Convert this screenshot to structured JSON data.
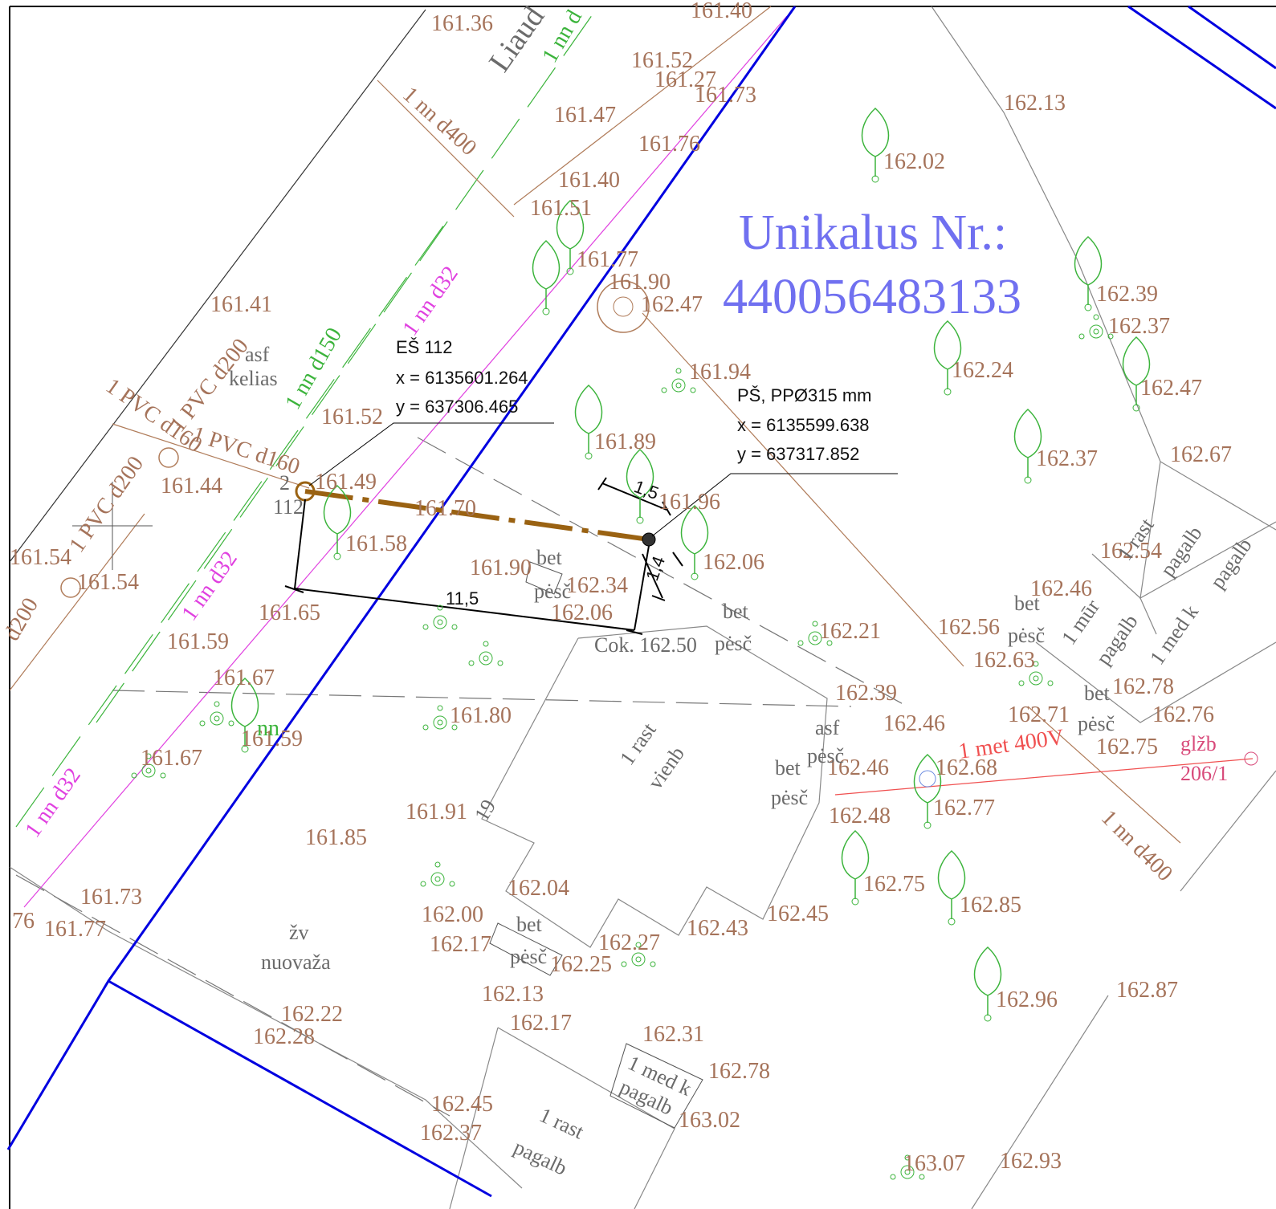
{
  "labels": [
    "161.36",
    "161.40",
    "161.52",
    "161.27",
    "161.73",
    "161.47",
    "161.76",
    "161.40",
    "161.51",
    "161.77",
    "161.90",
    "162.47",
    "161.41",
    "161.94",
    "161.52",
    "161.89",
    "161.44",
    "161.49",
    "161.96",
    "161.70",
    "161.58",
    "161.54",
    "161.54",
    "161.65",
    "161.90",
    "162.34",
    "162.06",
    "162.06",
    "161.59",
    "Cok. 162.50",
    "162.21",
    "161.67",
    "161.80",
    "161.59",
    "161.67",
    "162.39",
    "162.46",
    "162.46",
    "162.68",
    "162.48",
    "162.77",
    "161.91",
    "161.85",
    "162.04",
    "162.00",
    "162.17",
    "162.27",
    "162.25",
    "162.43",
    "162.45",
    "162.75",
    "162.85",
    "162.13",
    "162.17",
    "162.31",
    "162.78",
    "163.02",
    "162.22",
    "162.28",
    "162.45",
    "162.37",
    "161.73",
    "161.77",
    "76",
    "162.96",
    "162.87",
    "163.07",
    "162.93",
    "162.13",
    "162.02",
    "162.39",
    "162.37",
    "162.24",
    "162.47",
    "162.37",
    "162.67",
    "162.54",
    "162.46",
    "162.56",
    "162.63",
    "162.78",
    "162.71",
    "162.76",
    "162.75",
    "asf",
    "kelias",
    "bet",
    "pėsč",
    "bet",
    "pėsč",
    "asf",
    "pėsč",
    "bet",
    "pėsč",
    "bet",
    "pėsč",
    "bet",
    "pėsč",
    "bet",
    "pėsč",
    "žv",
    "nuovaža",
    "19",
    "2",
    "112",
    "1 rast",
    "vienb",
    "1 rast",
    "pagalb",
    "pagalb",
    "1 mūr",
    "pagalb",
    "1 med k",
    "1 med k",
    "pagalb",
    "1 rast",
    "pagalb",
    "Liaud",
    "1 nn d400",
    "1 PVC d200",
    "1 PVC d160",
    "1 PVC d160",
    "1 PVC d200",
    "d200",
    "1 nn d400",
    "1 nn d150",
    "1 nn d",
    "nn",
    "1 nn d32",
    "1 nn d32",
    "1 nn d32",
    "Unikalus Nr.:",
    "440056483133",
    "EŠ 112",
    "x = 6135601.264",
    "y = 637306.465",
    "PŠ, PPØ315 mm",
    "x = 6135599.638",
    "y = 637317.852",
    "11,5",
    "1,5",
    "1,4",
    "1 met 400V",
    "glžb",
    "206/1"
  ]
}
